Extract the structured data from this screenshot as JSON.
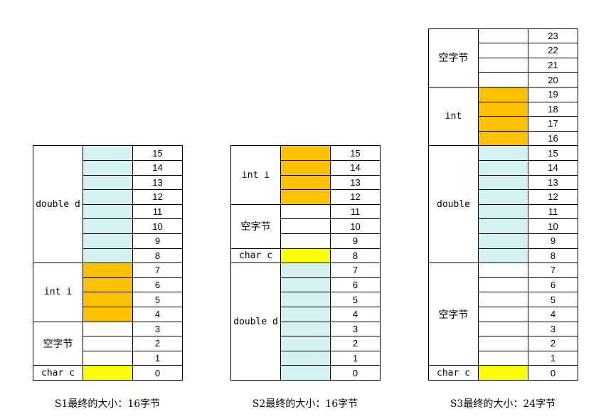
{
  "colors": {
    "double": "#d5f2f2",
    "int": "#ffc000",
    "char": "#ffff00",
    "padding": "#ffffff"
  },
  "structs": [
    {
      "caption": "S1最终的大小：16字节",
      "max_offset": 15,
      "members": [
        {
          "label": "double d",
          "type": "double",
          "from": 8,
          "to": 15
        },
        {
          "label": "int i",
          "type": "int",
          "from": 4,
          "to": 7
        },
        {
          "label": "空字节",
          "type": "padding",
          "from": 1,
          "to": 3
        },
        {
          "label": "char c",
          "type": "char",
          "from": 0,
          "to": 0
        }
      ]
    },
    {
      "caption": "S2最终的大小：16字节",
      "max_offset": 15,
      "members": [
        {
          "label": "int i",
          "type": "int",
          "from": 12,
          "to": 15
        },
        {
          "label": "空字节",
          "type": "padding",
          "from": 9,
          "to": 11
        },
        {
          "label": "char c",
          "type": "char",
          "from": 8,
          "to": 8
        },
        {
          "label": "double d",
          "type": "double",
          "from": 0,
          "to": 7
        }
      ]
    },
    {
      "caption": "S3最终的大小：24字节",
      "max_offset": 23,
      "members": [
        {
          "label": "空字节",
          "type": "padding",
          "from": 20,
          "to": 23
        },
        {
          "label": "int",
          "type": "int",
          "from": 16,
          "to": 19
        },
        {
          "label": "double",
          "type": "double",
          "from": 8,
          "to": 15
        },
        {
          "label": "空字节",
          "type": "padding",
          "from": 1,
          "to": 7
        },
        {
          "label": "char c",
          "type": "char",
          "from": 0,
          "to": 0
        }
      ]
    }
  ]
}
